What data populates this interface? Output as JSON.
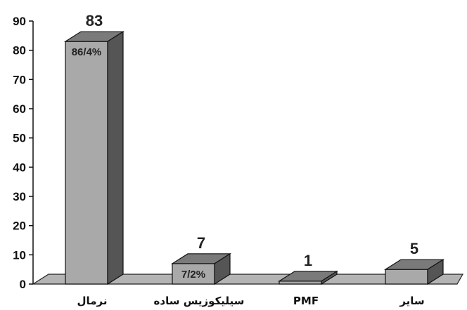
{
  "chart_data": {
    "type": "bar",
    "categories": [
      "نرمال",
      "سیلیکوزیس ساده",
      "PMF",
      "سایر"
    ],
    "values": [
      83,
      7,
      1,
      5
    ],
    "percent_labels": [
      "86/4%",
      "7/2%",
      "",
      ""
    ],
    "ylim": [
      0,
      90
    ],
    "yticks": [
      0,
      10,
      20,
      30,
      40,
      50,
      60,
      70,
      80,
      90
    ],
    "grid": false,
    "legend": "none",
    "style": "3d",
    "colors": {
      "front": "#a9a9a9",
      "top": "#7a7a7a",
      "side": "#555555",
      "floor": "#b4b4b4"
    }
  }
}
